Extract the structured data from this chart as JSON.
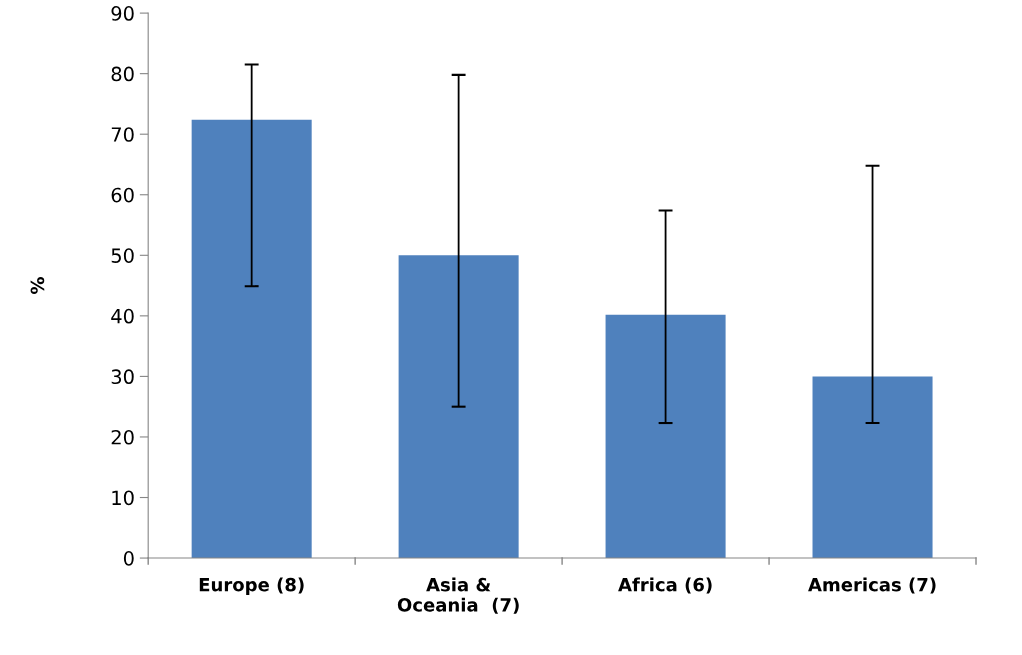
{
  "chart_data": {
    "type": "bar",
    "ylabel": "%",
    "categories": [
      "Europe (8)",
      "Asia &\nOceania  (7)",
      "Africa (6)",
      "Americas (7)"
    ],
    "values": [
      72.4,
      50.0,
      40.2,
      30.0
    ],
    "errors": [
      [
        44.9,
        81.5
      ],
      [
        25.0,
        79.8
      ],
      [
        22.3,
        57.4
      ],
      [
        22.3,
        64.8
      ]
    ],
    "color": "#4f81bd",
    "ylim": [
      0,
      90
    ],
    "yticks": [
      0,
      10,
      20,
      30,
      40,
      50,
      60,
      70,
      80,
      90
    ],
    "grid": false,
    "legend": false
  }
}
